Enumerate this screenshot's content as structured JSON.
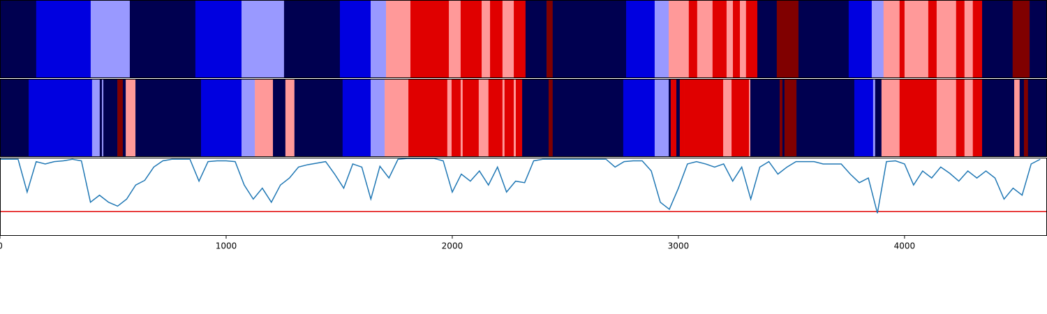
{
  "chart_data": [
    {
      "type": "segments",
      "xlim": [
        0,
        4630
      ],
      "palette": [
        "#000050",
        "#0000e0",
        "#9999ff",
        "#ff9999",
        "#e00000",
        "#800000"
      ],
      "starts": [
        0,
        160,
        401,
        574,
        864,
        1068,
        1256,
        1503,
        1639,
        1707,
        1815,
        1985,
        2037,
        2130,
        2167,
        2222,
        2272,
        2324,
        2417,
        2444,
        2769,
        2895,
        2957,
        3046,
        3083,
        3151,
        3213,
        3241,
        3272,
        3299,
        3349,
        3435,
        3531,
        3753,
        3855,
        3907,
        3978,
        4000,
        4105,
        4142,
        4228,
        4265,
        4302,
        4343,
        4478,
        4553
      ],
      "states": [
        0,
        1,
        2,
        0,
        1,
        2,
        0,
        1,
        2,
        3,
        4,
        3,
        4,
        3,
        4,
        3,
        4,
        0,
        5,
        0,
        1,
        2,
        3,
        4,
        3,
        4,
        3,
        4,
        3,
        4,
        0,
        5,
        0,
        1,
        2,
        3,
        4,
        3,
        4,
        3,
        4,
        3,
        4,
        0,
        5,
        0
      ]
    },
    {
      "type": "segments",
      "xlim": [
        0,
        4630
      ],
      "palette": [
        "#000050",
        "#0000e0",
        "#9999ff",
        "#ff9999",
        "#e00000",
        "#800000"
      ],
      "starts": [
        0,
        127,
        407,
        441,
        451,
        457,
        519,
        543,
        556,
        599,
        889,
        1068,
        1127,
        1207,
        1262,
        1302,
        1515,
        1639,
        1701,
        1806,
        1978,
        1997,
        2037,
        2046,
        2117,
        2160,
        2222,
        2231,
        2272,
        2281,
        2309,
        2426,
        2444,
        2756,
        2895,
        2957,
        2966,
        2991,
        3006,
        3025,
        3198,
        3235,
        3312,
        3318,
        3448,
        3460,
        3469,
        3522,
        3778,
        3861,
        3870,
        3898,
        3978,
        4142,
        4228,
        4265,
        4302,
        4343,
        4485,
        4509,
        4528,
        4546
      ],
      "states": [
        0,
        1,
        2,
        0,
        2,
        0,
        5,
        0,
        3,
        0,
        1,
        2,
        3,
        0,
        3,
        0,
        1,
        2,
        3,
        4,
        3,
        4,
        3,
        4,
        3,
        4,
        3,
        4,
        3,
        4,
        0,
        5,
        0,
        1,
        2,
        0,
        4,
        0,
        4,
        4,
        3,
        4,
        3,
        0,
        5,
        0,
        5,
        0,
        1,
        2,
        0,
        3,
        4,
        3,
        4,
        3,
        4,
        0,
        3,
        0,
        5,
        0
      ]
    },
    {
      "type": "line",
      "xlim": [
        0,
        4630
      ],
      "ylim": [
        0,
        1
      ],
      "xticks": [
        0,
        1000,
        2000,
        3000,
        4000
      ],
      "color": "#1f77b4",
      "threshold": 0.31,
      "threshold_color": "#e00000",
      "x": [
        0,
        40,
        80,
        120,
        160,
        200,
        240,
        280,
        320,
        360,
        400,
        440,
        480,
        520,
        560,
        600,
        640,
        680,
        720,
        760,
        800,
        840,
        880,
        920,
        960,
        1000,
        1040,
        1080,
        1120,
        1160,
        1200,
        1240,
        1280,
        1320,
        1360,
        1400,
        1440,
        1480,
        1520,
        1560,
        1600,
        1640,
        1680,
        1720,
        1760,
        1800,
        1840,
        1880,
        1920,
        1960,
        2000,
        2040,
        2080,
        2120,
        2160,
        2200,
        2240,
        2280,
        2320,
        2360,
        2400,
        2440,
        2480,
        2520,
        2560,
        2600,
        2640,
        2680,
        2720,
        2760,
        2800,
        2840,
        2880,
        2920,
        2960,
        3000,
        3040,
        3080,
        3120,
        3160,
        3200,
        3240,
        3280,
        3320,
        3360,
        3400,
        3440,
        3480,
        3520,
        3560,
        3600,
        3640,
        3680,
        3720,
        3760,
        3800,
        3840,
        3880,
        3920,
        3960,
        4000,
        4040,
        4080,
        4120,
        4160,
        4200,
        4240,
        4280,
        4320,
        4360,
        4400,
        4440,
        4480,
        4520,
        4560,
        4600
      ],
      "values": [
        0.98,
        0.98,
        0.98,
        0.56,
        0.95,
        0.92,
        0.95,
        0.96,
        0.98,
        0.96,
        0.43,
        0.52,
        0.43,
        0.38,
        0.47,
        0.65,
        0.71,
        0.88,
        0.96,
        0.98,
        0.98,
        0.98,
        0.7,
        0.95,
        0.96,
        0.96,
        0.95,
        0.65,
        0.47,
        0.61,
        0.43,
        0.65,
        0.74,
        0.88,
        0.91,
        0.93,
        0.95,
        0.79,
        0.61,
        0.92,
        0.88,
        0.47,
        0.89,
        0.74,
        0.98,
        0.99,
        0.99,
        0.99,
        0.99,
        0.96,
        0.56,
        0.79,
        0.7,
        0.83,
        0.65,
        0.88,
        0.56,
        0.7,
        0.68,
        0.96,
        0.98,
        0.98,
        0.98,
        0.98,
        0.98,
        0.98,
        0.98,
        0.98,
        0.88,
        0.95,
        0.96,
        0.96,
        0.83,
        0.43,
        0.34,
        0.61,
        0.92,
        0.95,
        0.92,
        0.88,
        0.92,
        0.7,
        0.88,
        0.47,
        0.88,
        0.95,
        0.79,
        0.88,
        0.95,
        0.95,
        0.95,
        0.92,
        0.92,
        0.92,
        0.79,
        0.68,
        0.74,
        0.29,
        0.95,
        0.96,
        0.92,
        0.65,
        0.83,
        0.74,
        0.88,
        0.8,
        0.7,
        0.83,
        0.74,
        0.83,
        0.74,
        0.47,
        0.61,
        0.52,
        0.92,
        0.98
      ]
    }
  ]
}
